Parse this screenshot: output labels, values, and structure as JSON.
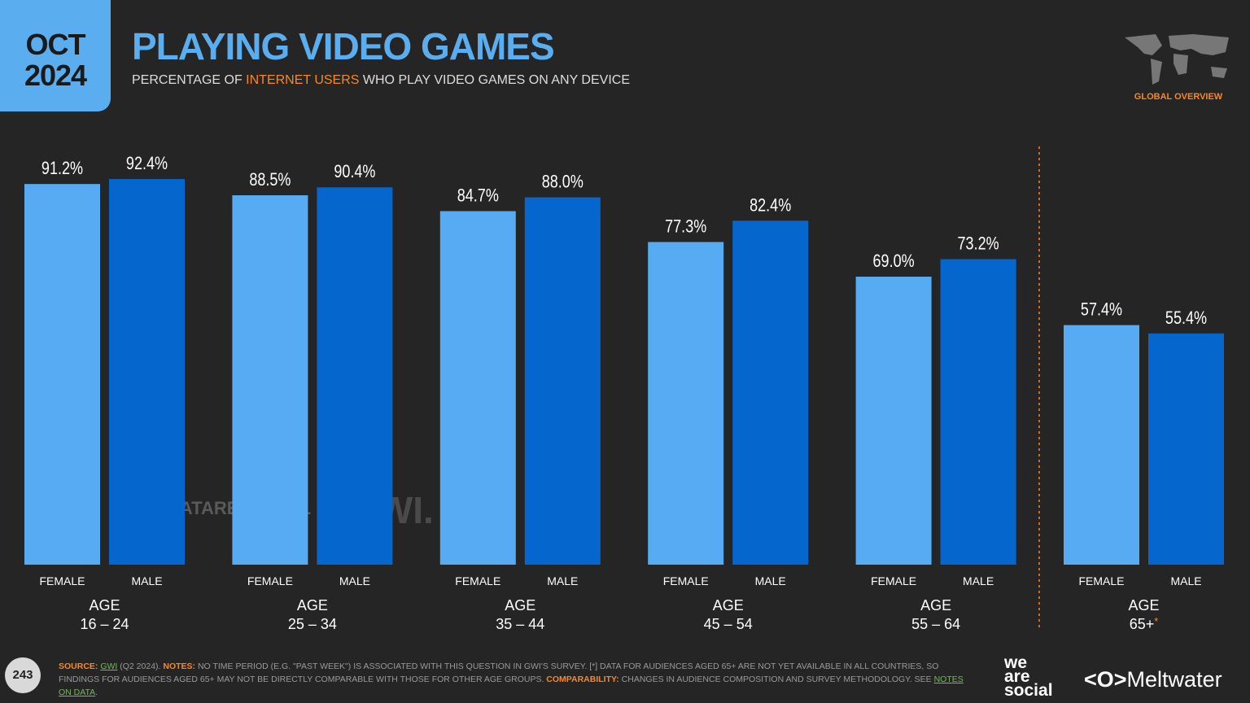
{
  "badge": {
    "month": "OCT",
    "year": "2024"
  },
  "chart_data": {
    "type": "bar",
    "title": "PLAYING VIDEO GAMES",
    "subtitle": [
      "PERCENTAGE OF ",
      "INTERNET USERS",
      " WHO PLAY VIDEO GAMES ON ANY DEVICE"
    ],
    "group_prefix": "AGE",
    "categories": [
      "16 – 24",
      "25 – 34",
      "35 – 44",
      "45 – 54",
      "55 – 64",
      "65+"
    ],
    "footnote_marker": "*",
    "series": [
      {
        "name": "FEMALE",
        "color": "#56abf2",
        "values": [
          91.2,
          88.5,
          84.7,
          77.3,
          69.0,
          57.4
        ],
        "value_labels": [
          "91.2%",
          "88.5%",
          "84.7%",
          "77.3%",
          "69.0%",
          "57.4%"
        ]
      },
      {
        "name": "MALE",
        "color": "#0567cd",
        "values": [
          92.4,
          90.4,
          88.0,
          82.4,
          73.2,
          55.4
        ],
        "value_labels": [
          "92.4%",
          "90.4%",
          "88.0%",
          "82.4%",
          "73.2%",
          "55.4%"
        ]
      }
    ],
    "ylim": [
      0,
      100
    ]
  },
  "region": "GLOBAL OVERVIEW",
  "watermark": [
    "DATAREPORTAL",
    "GWI."
  ],
  "page_number": "243",
  "footer": {
    "parts": [
      "SOURCE: ",
      "GWI",
      " (Q2 2024). ",
      "NOTES:",
      " NO TIME PERIOD (E.G. \"PAST WEEK\") IS ASSOCIATED WITH THIS QUESTION IN GWI'S SURVEY. [*] DATA FOR AUDIENCES AGED 65+ ARE NOT YET AVAILABLE IN ALL COUNTRIES, SO FINDINGS FOR AUDIENCES AGED 65+ MAY NOT BE DIRECTLY COMPARABLE WITH THOSE FOR OTHER AGE GROUPS. ",
      "COMPARABILITY:",
      " CHANGES IN AUDIENCE COMPOSITION AND SURVEY METHODOLOGY. SEE ",
      "NOTES ON DATA",
      "."
    ]
  },
  "logos": [
    "we",
    "are",
    "social",
    "Meltwater"
  ]
}
